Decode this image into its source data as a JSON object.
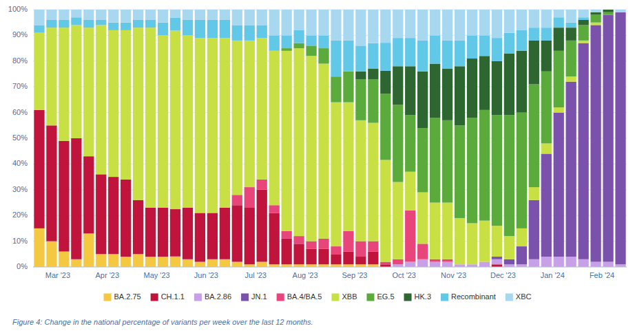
{
  "chart_data": {
    "type": "bar",
    "stacked": true,
    "grid": true,
    "legend": "bottom",
    "caption": "Figure 4: Change in the national percentage of variants per week over the last 12 months.",
    "categories": [
      "Mar '23",
      null,
      null,
      null,
      "Apr '23",
      null,
      null,
      null,
      "May '23",
      null,
      null,
      null,
      "Jun '23",
      null,
      null,
      null,
      "Jul '23",
      null,
      null,
      null,
      "Aug '23",
      null,
      null,
      null,
      "Sep '23",
      null,
      null,
      null,
      "Oct '23",
      null,
      null,
      null,
      "Nov '23",
      null,
      null,
      null,
      "Dec '23",
      null,
      null,
      null,
      "Jan '24",
      null,
      null,
      null,
      "Feb '24",
      null,
      null,
      null
    ],
    "ylim": [
      0,
      1
    ],
    "yticks": [
      {
        "value": 0,
        "label": "0%"
      },
      {
        "value": 0.1,
        "label": "10%"
      },
      {
        "value": 0.2,
        "label": "20%"
      },
      {
        "value": 0.3,
        "label": "30%"
      },
      {
        "value": 0.4,
        "label": "40%"
      },
      {
        "value": 0.5,
        "label": "50%"
      },
      {
        "value": 0.6,
        "label": "60%"
      },
      {
        "value": 0.7,
        "label": "70%"
      },
      {
        "value": 0.8,
        "label": "80%"
      },
      {
        "value": 0.9,
        "label": "90%"
      },
      {
        "value": 1,
        "label": "100%"
      }
    ],
    "series": [
      {
        "name": "BA.2.75",
        "color": "#f5c842",
        "values": [
          0.15,
          0.1,
          0.06,
          0.03,
          0.13,
          0.05,
          0.05,
          0.04,
          0.05,
          0.04,
          0.04,
          0.0408163,
          0.03,
          0.02,
          0.03,
          0.03,
          0.02,
          0.01,
          0.02,
          0.01,
          0.01,
          0.01,
          0.01,
          0.01,
          0.01,
          0.01,
          0.01,
          0.01,
          0,
          0,
          0,
          0,
          0,
          0,
          0,
          0,
          0,
          0,
          0,
          0,
          0,
          0,
          0,
          0,
          0,
          0,
          0,
          0
        ]
      },
      {
        "name": "CH.1.1",
        "color": "#c0143c",
        "values": [
          0.46,
          0.45,
          0.43,
          0.47,
          0.3,
          0.31,
          0.3,
          0.3,
          0.21,
          0.19,
          0.19,
          0.1836735,
          0.2,
          0.19,
          0.18,
          0.2,
          0.22,
          0.22,
          0.28,
          0.2,
          0.1,
          0.08,
          0.06,
          0.06,
          0.04,
          0.05,
          0.03,
          0.05,
          0.009901,
          0,
          0,
          0,
          0,
          0,
          0,
          0,
          0,
          0.01,
          0,
          0,
          0,
          0,
          0,
          0,
          0,
          0,
          0,
          0
        ]
      },
      {
        "name": "BA.2.86",
        "color": "#c8a0e8",
        "values": [
          0,
          0,
          0,
          0,
          0,
          0,
          0,
          0,
          0,
          0,
          0,
          0,
          0,
          0,
          0,
          0,
          0,
          0,
          0,
          0,
          0,
          0,
          0,
          0,
          0,
          0,
          0,
          0,
          0,
          0.01,
          0.02,
          0.03,
          0.02,
          0.02,
          0.01,
          0.01,
          0.02,
          0.02,
          0.01,
          0.01,
          0.03,
          0.04,
          0.04,
          0.04,
          0.03,
          0.02,
          0.02,
          0.01
        ]
      },
      {
        "name": "JN.1",
        "color": "#7b52ab",
        "values": [
          0,
          0,
          0,
          0,
          0,
          0,
          0,
          0,
          0,
          0,
          0,
          0,
          0,
          0,
          0,
          0,
          0,
          0,
          0,
          0,
          0,
          0,
          0,
          0,
          0,
          0,
          0,
          0,
          0,
          0,
          0,
          0,
          0,
          0,
          0,
          0,
          0,
          0.01,
          0.02,
          0.07,
          0.23,
          0.4,
          0.56,
          0.68,
          0.84,
          0.92,
          0.96,
          0.98
        ]
      },
      {
        "name": "BA.4/BA.5",
        "color": "#e8457a",
        "values": [
          0,
          0,
          0,
          0,
          0,
          0,
          0,
          0,
          0,
          0,
          0,
          0,
          0,
          0,
          0,
          0,
          0.04,
          0.08,
          0.04,
          0.03,
          0.03,
          0.03,
          0.03,
          0.04,
          0.03,
          0.08,
          0.06,
          0.04,
          0.009901,
          0.02,
          0.2,
          0.06,
          0.01,
          0.01,
          0,
          0,
          0,
          0,
          0,
          0,
          0,
          0,
          0,
          0,
          0,
          0,
          0,
          0
        ]
      },
      {
        "name": "XBB",
        "color": "#c8e044",
        "values": [
          0.3,
          0.38,
          0.44,
          0.44,
          0.5,
          0.58,
          0.57,
          0.58,
          0.67,
          0.7,
          0.67,
          0.6938776,
          0.67,
          0.68,
          0.68,
          0.66,
          0.6,
          0.57,
          0.55,
          0.6,
          0.7,
          0.73,
          0.72,
          0.68,
          0.56,
          0.5,
          0.47,
          0.46,
          0.3960396,
          0.3,
          0.15,
          0.2,
          0.22,
          0.22,
          0.18,
          0.16,
          0.16,
          0.12,
          0.09,
          0.07,
          0.05,
          0.04,
          0.02,
          0.02,
          0.01,
          0.01,
          0,
          0
        ]
      },
      {
        "name": "EG.5",
        "color": "#5aaa3c",
        "values": [
          0,
          0,
          0,
          0,
          0,
          0,
          0,
          0,
          0,
          0,
          0,
          0,
          0,
          0,
          0,
          0,
          0,
          0,
          0,
          0,
          0.01,
          0.02,
          0.04,
          0.06,
          0.1,
          0.12,
          0.16,
          0.17,
          0.2574257,
          0.3,
          0.22,
          0.25,
          0.33,
          0.32,
          0.36,
          0.41,
          0.43,
          0.43,
          0.47,
          0.45,
          0.4,
          0.28,
          0.22,
          0.14,
          0.06,
          0.03,
          0.01,
          0
        ]
      },
      {
        "name": "HK.3",
        "color": "#2d6630",
        "values": [
          0,
          0,
          0,
          0,
          0,
          0,
          0,
          0,
          0,
          0,
          0,
          0,
          0,
          0,
          0,
          0,
          0,
          0,
          0,
          0,
          0,
          0,
          0,
          0,
          0,
          0,
          0.03,
          0.04,
          0.0891089,
          0.15,
          0.19,
          0.22,
          0.21,
          0.2,
          0.23,
          0.23,
          0.21,
          0.21,
          0.24,
          0.24,
          0.17,
          0.12,
          0.09,
          0.05,
          0.02,
          0.01,
          0.01,
          0
        ]
      },
      {
        "name": "Recombinant",
        "color": "#62c8e8",
        "values": [
          0.03,
          0.03,
          0.03,
          0.03,
          0.03,
          0.02,
          0.03,
          0.03,
          0.03,
          0.03,
          0.05,
          0.0510204,
          0.06,
          0.07,
          0.07,
          0.07,
          0.06,
          0.06,
          0.05,
          0.06,
          0.05,
          0.05,
          0.04,
          0.05,
          0.14,
          0.12,
          0.1,
          0.1,
          0.1089109,
          0.11,
          0.11,
          0.12,
          0.11,
          0.11,
          0.1,
          0.09,
          0.08,
          0.09,
          0.08,
          0.08,
          0.05,
          0.05,
          0.04,
          0.02,
          0.01,
          0,
          0,
          0
        ]
      },
      {
        "name": "XBC",
        "color": "#a8d8f0",
        "values": [
          0.06,
          0.04,
          0.04,
          0.03,
          0.04,
          0.04,
          0.05,
          0.05,
          0.04,
          0.04,
          0.05,
          0.0306122,
          0.04,
          0.04,
          0.04,
          0.04,
          0.06,
          0.06,
          0.06,
          0.1,
          0.1,
          0.08,
          0.1,
          0.1,
          0.12,
          0.12,
          0.14,
          0.13,
          0.1287129,
          0.11,
          0.11,
          0.12,
          0.1,
          0.12,
          0.12,
          0.1,
          0.1,
          0.11,
          0.09,
          0.08,
          0.07,
          0.07,
          0.03,
          0.05,
          0.03,
          0.01,
          0,
          0.01
        ]
      }
    ]
  }
}
